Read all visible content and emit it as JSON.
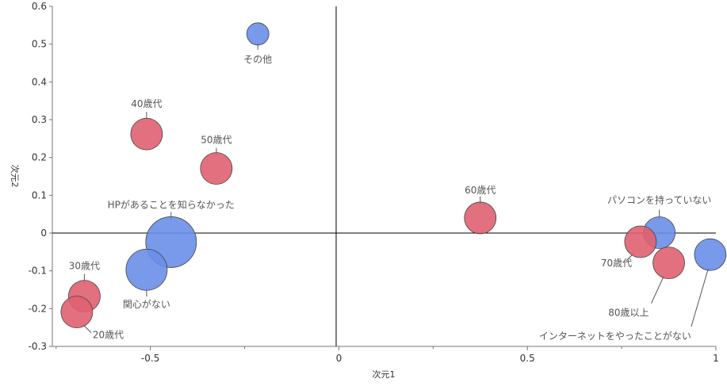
{
  "chart_data": {
    "type": "scatter",
    "title": "",
    "xlabel": "次元1",
    "ylabel": "次元2",
    "xlim": [
      -0.76,
      1.0
    ],
    "ylim": [
      -0.3,
      0.6
    ],
    "xticks": [
      -0.5,
      0,
      0.5,
      1
    ],
    "xtick_labels": [
      "-0.5",
      "0",
      "0.5",
      "1"
    ],
    "yticks": [
      -0.3,
      -0.2,
      -0.1,
      0,
      0.1,
      0.2,
      0.3,
      0.4,
      0.5,
      0.6
    ],
    "ytick_labels": [
      "-0.3",
      "-0.2",
      "-0.1",
      "0",
      "0.1",
      "0.2",
      "0.3",
      "0.4",
      "0.5",
      "0.6"
    ],
    "grid": false,
    "colors": {
      "red": "#e06070",
      "blue": "#6a8ee8"
    },
    "points": [
      {
        "label": "その他",
        "x": -0.215,
        "y": 0.527,
        "size": 1,
        "color": "blue"
      },
      {
        "label": "40歳代",
        "x": -0.51,
        "y": 0.262,
        "size": 2,
        "color": "red"
      },
      {
        "label": "50歳代",
        "x": -0.325,
        "y": 0.171,
        "size": 2,
        "color": "red"
      },
      {
        "label": "HPがあることを知らなかった",
        "x": -0.445,
        "y": -0.024,
        "size": 4,
        "color": "blue"
      },
      {
        "label": "関心がない",
        "x": -0.51,
        "y": -0.097,
        "size": 3,
        "color": "blue"
      },
      {
        "label": "30歳代",
        "x": -0.675,
        "y": -0.167,
        "size": 2,
        "color": "red"
      },
      {
        "label": "20歳代",
        "x": -0.695,
        "y": -0.209,
        "size": 2,
        "color": "red"
      },
      {
        "label": "60歳代",
        "x": 0.375,
        "y": 0.04,
        "size": 2,
        "color": "red"
      },
      {
        "label": "パソコンを持っていない",
        "x": 0.85,
        "y": 0.001,
        "size": 2,
        "color": "blue"
      },
      {
        "label": "70歳代",
        "x": 0.8,
        "y": -0.023,
        "size": 2,
        "color": "red"
      },
      {
        "label": "80歳以上",
        "x": 0.875,
        "y": -0.079,
        "size": 2,
        "color": "red"
      },
      {
        "label": "インターネットをやったことがない",
        "x": 0.985,
        "y": -0.057,
        "size": 2,
        "color": "blue"
      }
    ]
  }
}
